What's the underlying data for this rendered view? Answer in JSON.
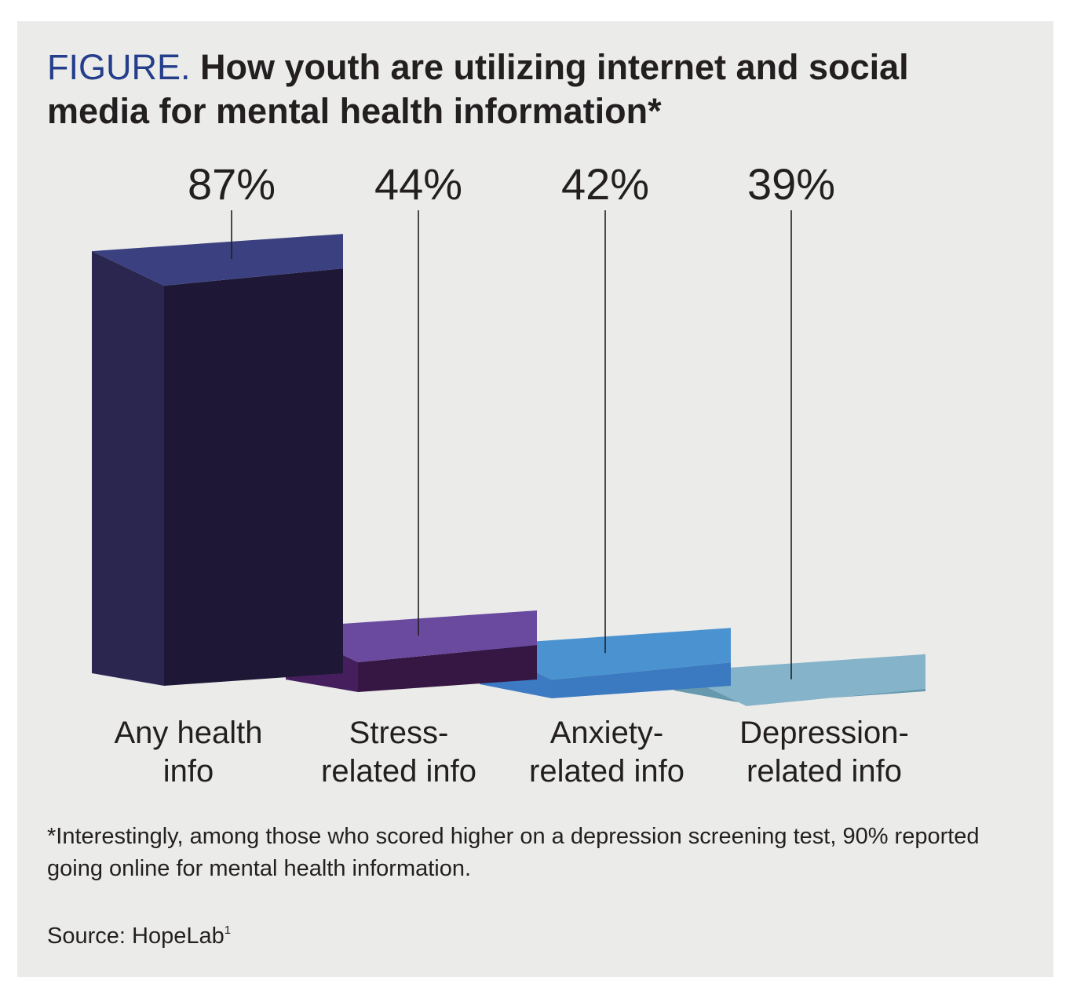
{
  "figure": {
    "lead": "FIGURE.",
    "title": "How youth are utilizing internet and social media for mental health information*",
    "footnote": "*Interestingly, among those who scored higher on a depression screening test, 90% reported going online for mental health information.",
    "source_label": "Source: HopeLab",
    "source_ref": "1"
  },
  "chart_data": {
    "type": "bar",
    "title": "How youth are utilizing internet and social media for mental health information*",
    "categories": [
      [
        "Any health",
        "info"
      ],
      [
        "Stress-",
        "related info"
      ],
      [
        "Anxiety-",
        "related info"
      ],
      [
        "Depression-",
        "related info"
      ]
    ],
    "values": [
      87,
      44,
      42,
      39
    ],
    "value_labels": [
      "87%",
      "44%",
      "42%",
      "39%"
    ],
    "unit": "%",
    "xlabel": "",
    "ylabel": "",
    "ylim": [
      0,
      100
    ],
    "grid": false,
    "colors": {
      "front": [
        "#1e1836",
        "#361643",
        "#3b7ac0",
        "#6699ad"
      ],
      "side": [
        "#2a2650",
        "#451f5d",
        "#3c7bc3",
        "#6699ad"
      ],
      "top": [
        "#3b4180",
        "#6a4a9e",
        "#4a92d0",
        "#85b4ca"
      ]
    }
  }
}
